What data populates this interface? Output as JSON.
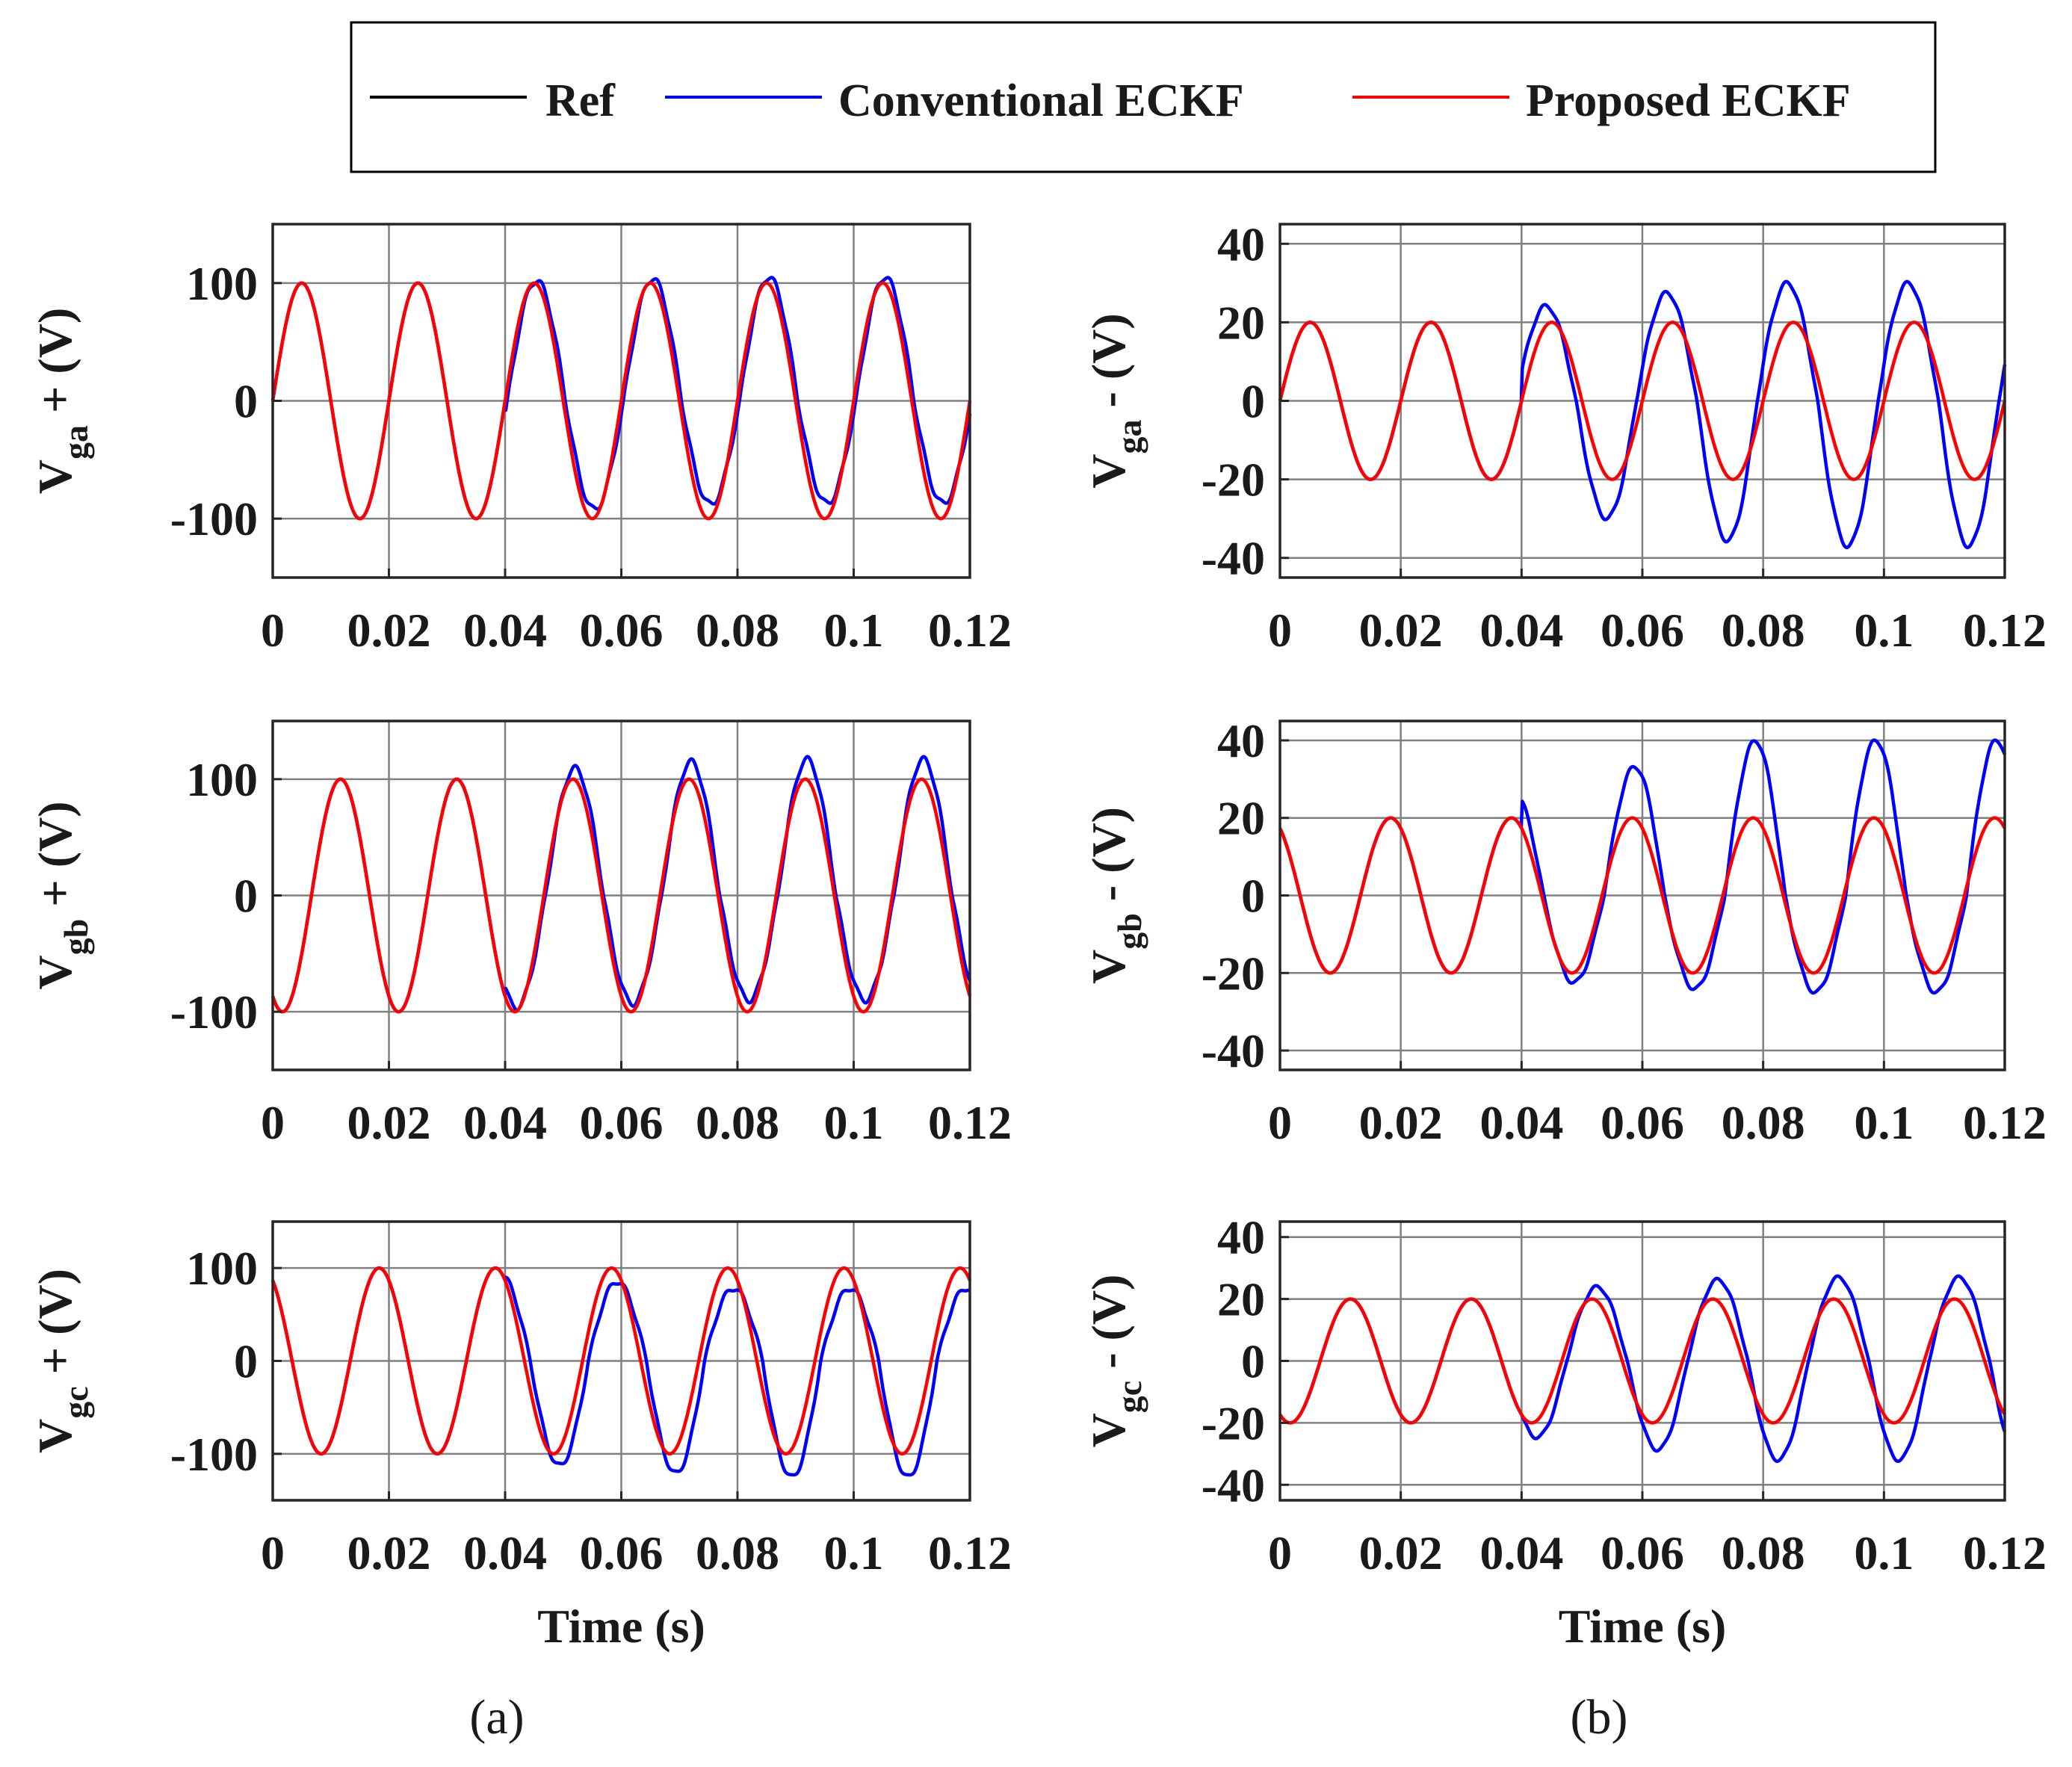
{
  "legend": {
    "items": [
      {
        "label": "Ref",
        "color": "#000000"
      },
      {
        "label": "Conventional ECKF",
        "color": "#0000ff"
      },
      {
        "label": "Proposed ECKF",
        "color": "#ff0000"
      }
    ]
  },
  "panel_labels": {
    "a": {
      "open": "(",
      "letter": "a",
      "close": ")"
    },
    "b": {
      "open": "(",
      "letter": "b",
      "close": ")"
    }
  },
  "colors": {
    "ref": "#000000",
    "conventional": "#0000ff",
    "proposed": "#ff0000",
    "grid": "#808080",
    "axis": "#262626"
  },
  "chart_data": [
    {
      "id": "vga_pos",
      "type": "line",
      "column": "a",
      "ylabel": {
        "v": "V",
        "sub": "ga",
        "rest": " + (V)"
      },
      "xlabel": "",
      "xlim": [
        0,
        0.12
      ],
      "ylim": [
        -150,
        150
      ],
      "xticks": [
        0,
        0.02,
        0.04,
        0.06,
        0.08,
        0.1,
        0.12
      ],
      "xtick_labels": [
        "0",
        "0.02",
        "0.04",
        "0.06",
        "0.08",
        "0.1",
        "0.12"
      ],
      "yticks": [
        -100,
        0,
        100
      ],
      "ytick_labels": [
        "-100",
        "0",
        "100"
      ],
      "series": [
        {
          "name": "Ref",
          "key": "ref",
          "wave": {
            "freq_hz": 50,
            "amplitude": 100,
            "phase_deg": 0
          }
        },
        {
          "name": "Conventional ECKF",
          "key": "conventional",
          "wave": {
            "freq_hz": 50,
            "amplitude": 100,
            "phase_deg": 0,
            "disturbance_start_s": 0.04,
            "positive_peak": 105,
            "negative_peak": -87,
            "lag_ms": 0.4
          }
        },
        {
          "name": "Proposed ECKF",
          "key": "proposed",
          "wave": {
            "freq_hz": 50,
            "amplitude": 100,
            "phase_deg": 0
          }
        }
      ]
    },
    {
      "id": "vga_neg",
      "type": "line",
      "column": "b",
      "ylabel": {
        "v": "V",
        "sub": "ga",
        "rest": " - (V)"
      },
      "xlabel": "",
      "xlim": [
        0,
        0.12
      ],
      "ylim": [
        -45,
        45
      ],
      "xticks": [
        0,
        0.02,
        0.04,
        0.06,
        0.08,
        0.1,
        0.12
      ],
      "xtick_labels": [
        "0",
        "0.02",
        "0.04",
        "0.06",
        "0.08",
        "0.1",
        "0.12"
      ],
      "yticks": [
        -40,
        -20,
        0,
        20,
        40
      ],
      "ytick_labels": [
        "-40",
        "-20",
        "0",
        "20",
        "40"
      ],
      "series": [
        {
          "name": "Ref",
          "key": "ref",
          "wave": {
            "freq_hz": 50,
            "amplitude": 20,
            "phase_deg": 0
          }
        },
        {
          "name": "Conventional ECKF",
          "key": "conventional",
          "wave": {
            "freq_hz": 50,
            "amplitude": 20,
            "phase_deg": 0,
            "disturbance_start_s": 0.04,
            "positive_peak": 30,
            "negative_peak": -37,
            "lead_ms": 1.0
          }
        },
        {
          "name": "Proposed ECKF",
          "key": "proposed",
          "wave": {
            "freq_hz": 50,
            "amplitude": 20,
            "phase_deg": 0
          }
        }
      ]
    },
    {
      "id": "vgb_pos",
      "type": "line",
      "column": "a",
      "ylabel": {
        "v": "V",
        "sub": "gb",
        "rest": " + (V)"
      },
      "xlabel": "",
      "xlim": [
        0,
        0.12
      ],
      "ylim": [
        -150,
        150
      ],
      "xticks": [
        0,
        0.02,
        0.04,
        0.06,
        0.08,
        0.1,
        0.12
      ],
      "xtick_labels": [
        "0",
        "0.02",
        "0.04",
        "0.06",
        "0.08",
        "0.1",
        "0.12"
      ],
      "yticks": [
        -100,
        0,
        100
      ],
      "ytick_labels": [
        "-100",
        "0",
        "100"
      ],
      "series": [
        {
          "name": "Ref",
          "key": "ref",
          "wave": {
            "freq_hz": 50,
            "amplitude": 100,
            "phase_deg": -120
          }
        },
        {
          "name": "Conventional ECKF",
          "key": "conventional",
          "wave": {
            "freq_hz": 50,
            "amplitude": 100,
            "phase_deg": -120,
            "disturbance_start_s": 0.04,
            "positive_peak": 117,
            "negative_peak": -90,
            "lag_ms": 0.3
          }
        },
        {
          "name": "Proposed ECKF",
          "key": "proposed",
          "wave": {
            "freq_hz": 50,
            "amplitude": 100,
            "phase_deg": -120
          }
        }
      ]
    },
    {
      "id": "vgb_neg",
      "type": "line",
      "column": "b",
      "ylabel": {
        "v": "V",
        "sub": "gb",
        "rest": " - (V)"
      },
      "xlabel": "",
      "xlim": [
        0,
        0.12
      ],
      "ylim": [
        -45,
        45
      ],
      "xticks": [
        0,
        0.02,
        0.04,
        0.06,
        0.08,
        0.1,
        0.12
      ],
      "xtick_labels": [
        "0",
        "0.02",
        "0.04",
        "0.06",
        "0.08",
        "0.1",
        "0.12"
      ],
      "yticks": [
        -40,
        -20,
        0,
        20,
        40
      ],
      "ytick_labels": [
        "-40",
        "-20",
        "0",
        "20",
        "40"
      ],
      "series": [
        {
          "name": "Ref",
          "key": "ref",
          "wave": {
            "freq_hz": 50,
            "amplitude": 20,
            "phase_deg": 120
          }
        },
        {
          "name": "Conventional ECKF",
          "key": "conventional",
          "wave": {
            "freq_hz": 50,
            "amplitude": 20,
            "phase_deg": 120,
            "disturbance_start_s": 0.04,
            "positive_peak": 40,
            "negative_peak": -25,
            "lag_ms": 0.3
          }
        },
        {
          "name": "Proposed ECKF",
          "key": "proposed",
          "wave": {
            "freq_hz": 50,
            "amplitude": 20,
            "phase_deg": 120
          }
        }
      ]
    },
    {
      "id": "vgc_pos",
      "type": "line",
      "column": "a",
      "ylabel": {
        "v": "V",
        "sub": "gc",
        "rest": " + (V)"
      },
      "xlabel": "Time (s)",
      "xlim": [
        0,
        0.12
      ],
      "ylim": [
        -150,
        150
      ],
      "xticks": [
        0,
        0.02,
        0.04,
        0.06,
        0.08,
        0.1,
        0.12
      ],
      "xtick_labels": [
        "0",
        "0.02",
        "0.04",
        "0.06",
        "0.08",
        "0.1",
        "0.12"
      ],
      "yticks": [
        -100,
        0,
        100
      ],
      "ytick_labels": [
        "-100",
        "0",
        "100"
      ],
      "series": [
        {
          "name": "Ref",
          "key": "ref",
          "wave": {
            "freq_hz": 50,
            "amplitude": 100,
            "phase_deg": 120
          }
        },
        {
          "name": "Conventional ECKF",
          "key": "conventional",
          "wave": {
            "freq_hz": 50,
            "amplitude": 100,
            "phase_deg": 120,
            "disturbance_start_s": 0.04,
            "positive_peak": 78,
            "negative_peak": -125,
            "lag_ms": 1.0
          }
        },
        {
          "name": "Proposed ECKF",
          "key": "proposed",
          "wave": {
            "freq_hz": 50,
            "amplitude": 100,
            "phase_deg": 120
          }
        }
      ]
    },
    {
      "id": "vgc_neg",
      "type": "line",
      "column": "b",
      "ylabel": {
        "v": "V",
        "sub": "gc",
        "rest": " - (V)"
      },
      "xlabel": "Time (s)",
      "xlim": [
        0,
        0.12
      ],
      "ylim": [
        -45,
        45
      ],
      "xticks": [
        0,
        0.02,
        0.04,
        0.06,
        0.08,
        0.1,
        0.12
      ],
      "xtick_labels": [
        "0",
        "0.02",
        "0.04",
        "0.06",
        "0.08",
        "0.1",
        "0.12"
      ],
      "yticks": [
        -40,
        -20,
        0,
        20,
        40
      ],
      "ytick_labels": [
        "-40",
        "-20",
        "0",
        "20",
        "40"
      ],
      "series": [
        {
          "name": "Ref",
          "key": "ref",
          "wave": {
            "freq_hz": 50,
            "amplitude": 20,
            "phase_deg": -120
          }
        },
        {
          "name": "Conventional ECKF",
          "key": "conventional",
          "wave": {
            "freq_hz": 50,
            "amplitude": 20,
            "phase_deg": -120,
            "disturbance_start_s": 0.04,
            "positive_peak": 27,
            "negative_peak": -32,
            "lag_ms": 0.8
          }
        },
        {
          "name": "Proposed ECKF",
          "key": "proposed",
          "wave": {
            "freq_hz": 50,
            "amplitude": 20,
            "phase_deg": -120
          }
        }
      ]
    }
  ]
}
